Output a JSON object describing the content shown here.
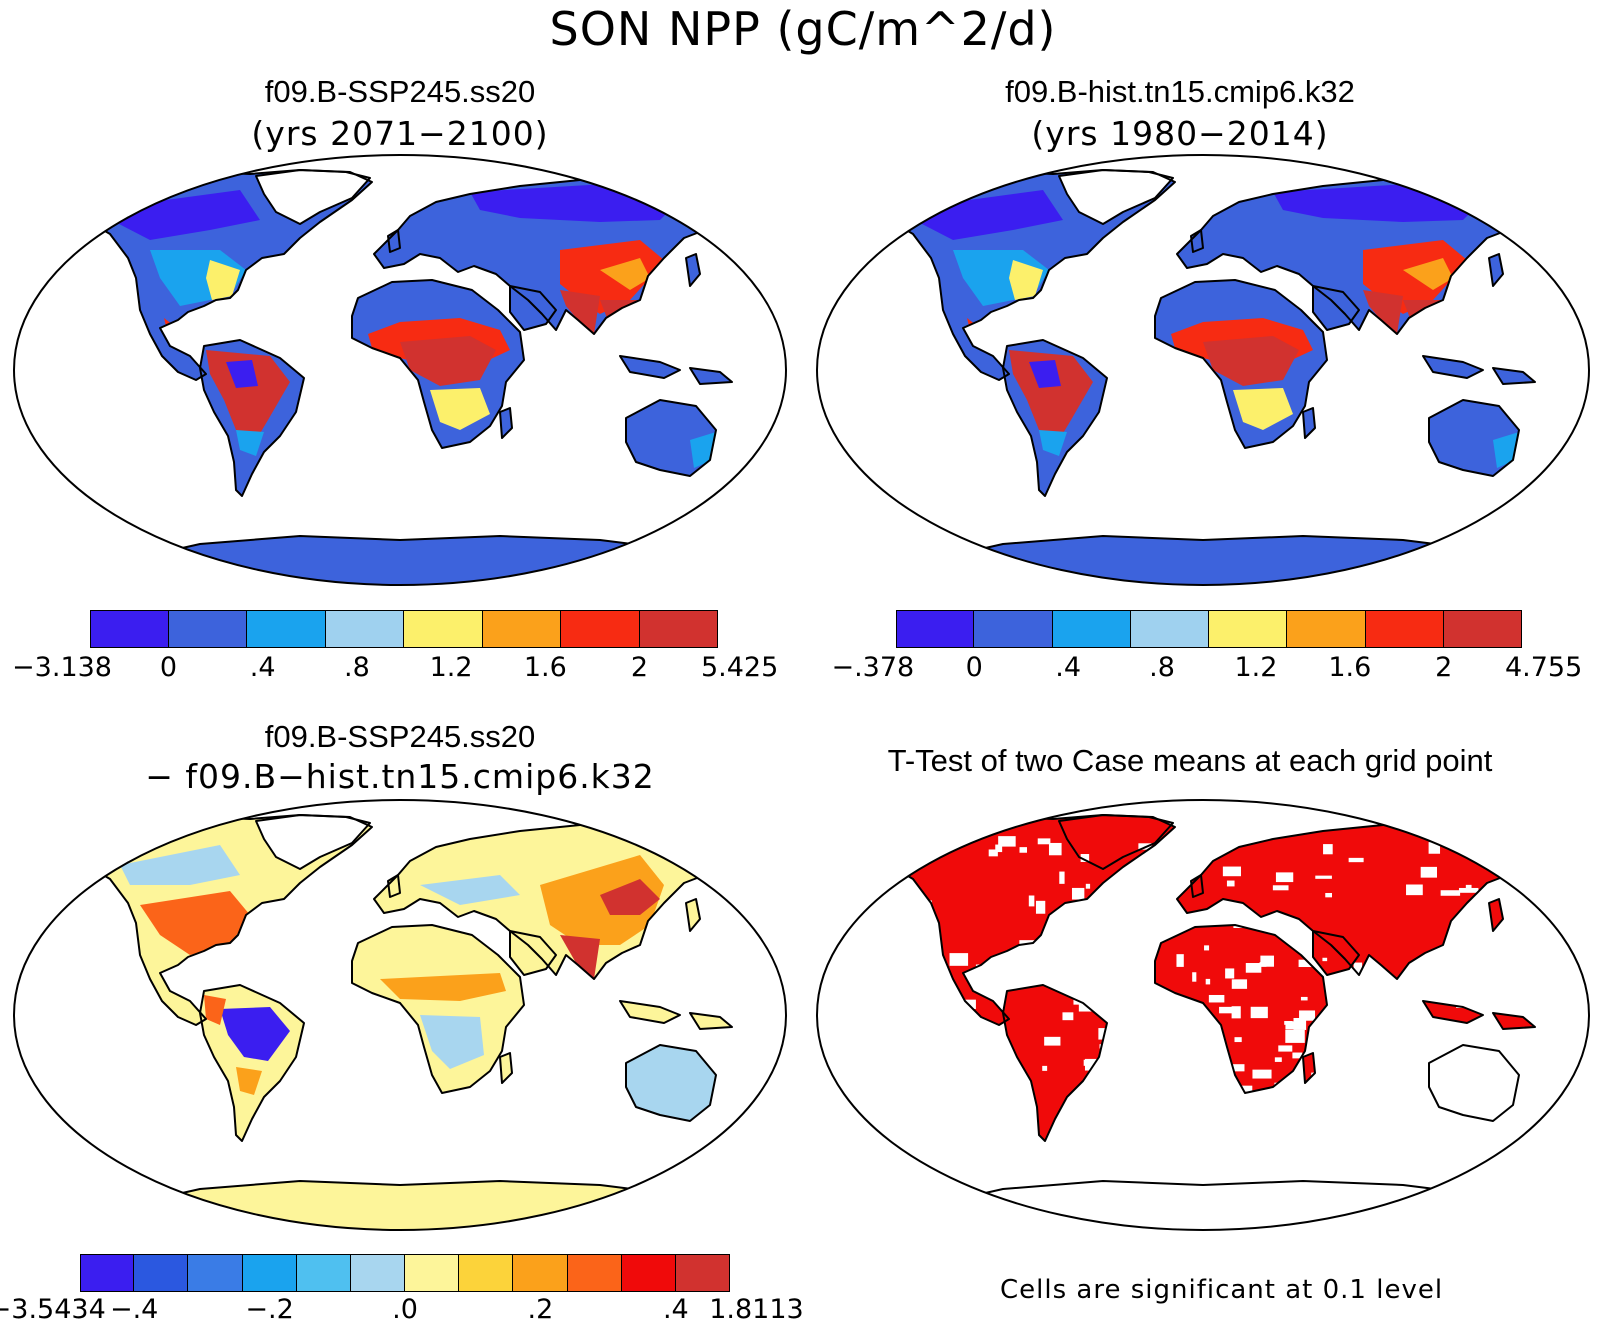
{
  "figure": {
    "title": "SON NPP (gC/m^2/d)"
  },
  "panels": [
    {
      "id": "ssp",
      "title": "f09.B-SSP245.ss20",
      "subtitle": "(yrs 2071−2100)",
      "colorbar": {
        "colors": [
          "#3b1ef0",
          "#3d63dc",
          "#1aa3ee",
          "#9fd1ef",
          "#fcf06b",
          "#fba11b",
          "#f72b12",
          "#d1322f"
        ],
        "labels": [
          "−3.138",
          "0",
          ".4",
          ".8",
          "1.2",
          "1.6",
          "2",
          "5.425"
        ]
      }
    },
    {
      "id": "hist",
      "title": "f09.B-hist.tn15.cmip6.k32",
      "subtitle": "(yrs 1980−2014)",
      "colorbar": {
        "colors": [
          "#3b1ef0",
          "#3d63dc",
          "#1aa3ee",
          "#9fd1ef",
          "#fcf06b",
          "#fba11b",
          "#f72b12",
          "#d1322f"
        ],
        "labels": [
          "−.378",
          "0",
          ".4",
          ".8",
          "1.2",
          "1.6",
          "2",
          "4.755"
        ]
      }
    },
    {
      "id": "diff",
      "title": "f09.B-SSP245.ss20",
      "subtitle": "− f09.B−hist.tn15.cmip6.k32",
      "colorbar": {
        "colors": [
          "#3b1ef0",
          "#2b58e0",
          "#3a7ce6",
          "#1aa3ee",
          "#4fc0f0",
          "#a8d6ef",
          "#fdf59a",
          "#fcd33a",
          "#fba11b",
          "#fb6419",
          "#f00a0a",
          "#d1322f"
        ],
        "labels": [
          "−3.5434",
          "−.4",
          "−.2",
          ".0",
          ".2",
          ".4",
          "1.8113"
        ]
      }
    },
    {
      "id": "ttest",
      "title": "T-Test of two Case means at each grid point",
      "note": "Cells are significant at 0.1 level",
      "sig_color": "#f00a0a"
    }
  ]
}
